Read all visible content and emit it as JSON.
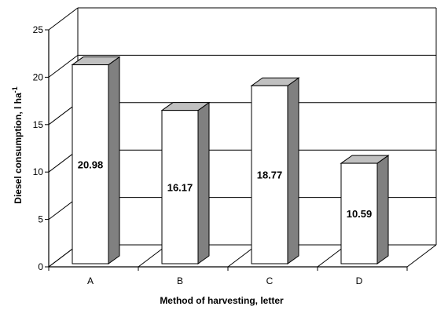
{
  "chart_data": {
    "type": "bar",
    "categories": [
      "A",
      "B",
      "C",
      "D"
    ],
    "values": [
      20.98,
      16.17,
      18.77,
      10.59
    ],
    "value_labels": [
      "20.98",
      "16.17",
      "18.77",
      "10.59"
    ],
    "title": "",
    "xlabel": "Method of harvesting, letter",
    "ylabel": "Diesel consumption,  l ha",
    "ylabel_superscript": "-1",
    "ylim": [
      0,
      25
    ],
    "yticks": [
      "0",
      "5",
      "10",
      "15",
      "20",
      "25"
    ],
    "grid": true,
    "style": "3d",
    "colors": {
      "bar_face": "#ffffff",
      "bar_top": "#c0c0c0",
      "bar_side": "#808080",
      "grid": "#000000"
    }
  }
}
